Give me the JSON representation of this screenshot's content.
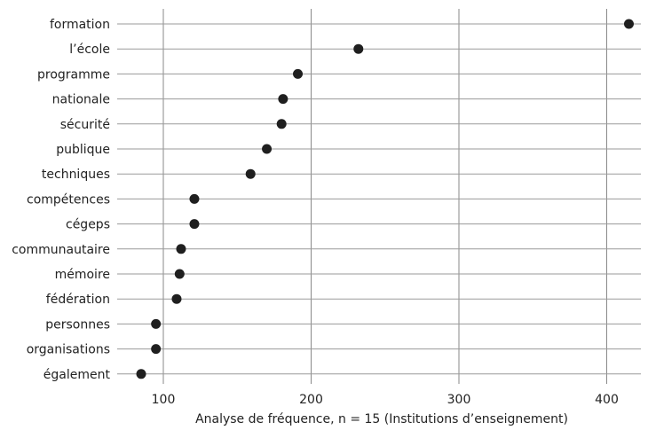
{
  "chart_data": {
    "type": "scatter",
    "style": "dot-plot",
    "xlabel": "Analyse de fréquence, n = 15 (Institutions d’enseignement)",
    "ylabel": "",
    "title": "",
    "xlim": [
      70,
      425
    ],
    "xticks": [
      100,
      200,
      300,
      400
    ],
    "grid": true,
    "categories": [
      "formation",
      "l’école",
      "programme",
      "nationale",
      "sécurité",
      "publique",
      "techniques",
      "compétences",
      "cégeps",
      "communautaire",
      "mémoire",
      "fédération",
      "personnes",
      "organisations",
      "également"
    ],
    "values": [
      415,
      232,
      191,
      181,
      180,
      170,
      159,
      121,
      121,
      112,
      111,
      109,
      95,
      95,
      85
    ],
    "colors": {
      "dot": "#1f1f1f",
      "grid": "#8a8a8a"
    }
  }
}
